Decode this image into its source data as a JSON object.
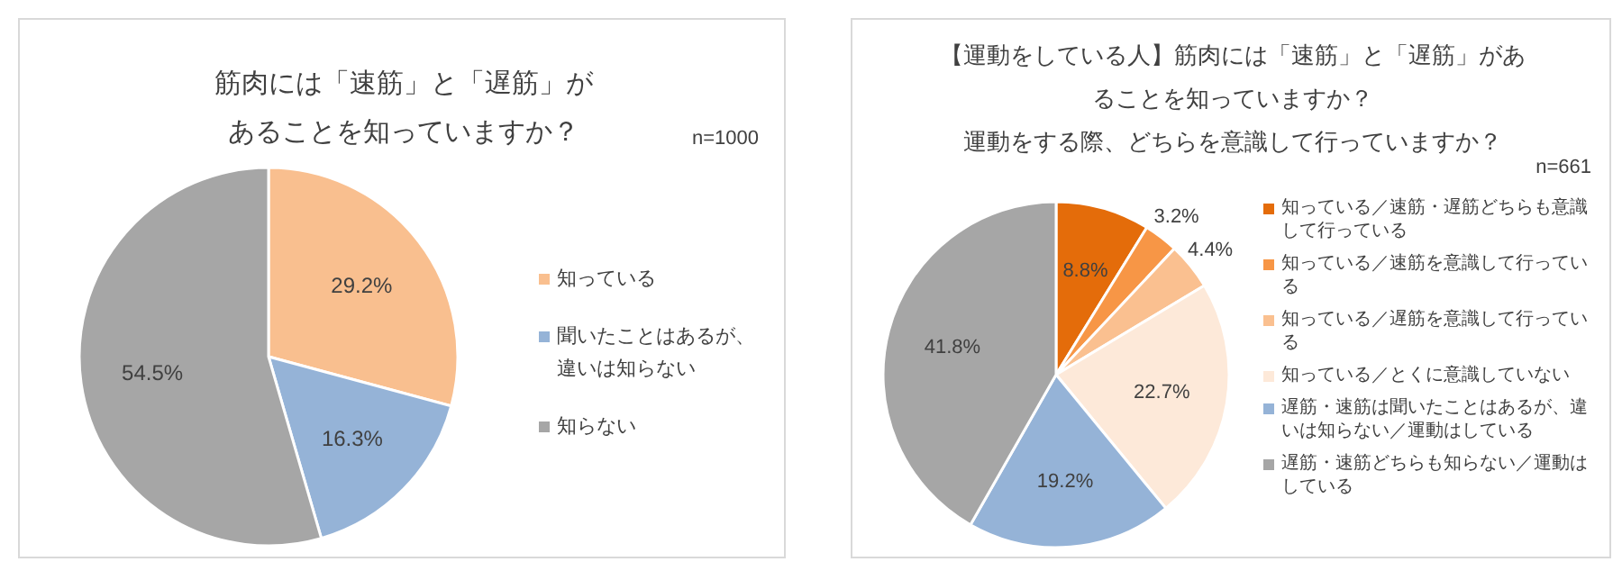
{
  "chart_data": [
    {
      "type": "pie",
      "title": "筋肉には「速筋」と「遅筋」があることを知っていますか？",
      "annotations": [
        "n=1000"
      ],
      "legend": "right",
      "categories": [
        "知っている",
        "聞いたことはあるが、違いは知らない",
        "知らない"
      ],
      "values": [
        29.2,
        16.3,
        54.5
      ],
      "colors": [
        "#f9bf8f",
        "#95b3d7",
        "#a6a6a6"
      ],
      "value_labels": [
        "29.2%",
        "16.3%",
        "54.5%"
      ]
    },
    {
      "type": "pie",
      "title": "【運動をしている人】筋肉には「速筋」と「遅筋」があることを知っていますか？",
      "subtitle": "運動をする際、どちらを意識して行っていますか？",
      "annotations": [
        "n=661"
      ],
      "legend": "right",
      "categories": [
        "知っている／速筋・遅筋どちらも意識して行っている",
        "知っている／速筋を意識して行っている",
        "知っている／遅筋を意識して行っている",
        "知っている／とくに意識していない",
        "遅筋・速筋は聞いたことはあるが、違いは知らない／運動はしている",
        "遅筋・速筋どちらも知らない／運動はしている"
      ],
      "values": [
        8.8,
        3.2,
        4.4,
        22.7,
        19.2,
        41.8
      ],
      "colors": [
        "#e46c0a",
        "#f79646",
        "#fac090",
        "#fde9d9",
        "#95b3d7",
        "#a6a6a6"
      ],
      "value_labels": [
        "8.8%",
        "3.2%",
        "4.4%",
        "22.7%",
        "19.2%",
        "41.8%"
      ]
    }
  ]
}
